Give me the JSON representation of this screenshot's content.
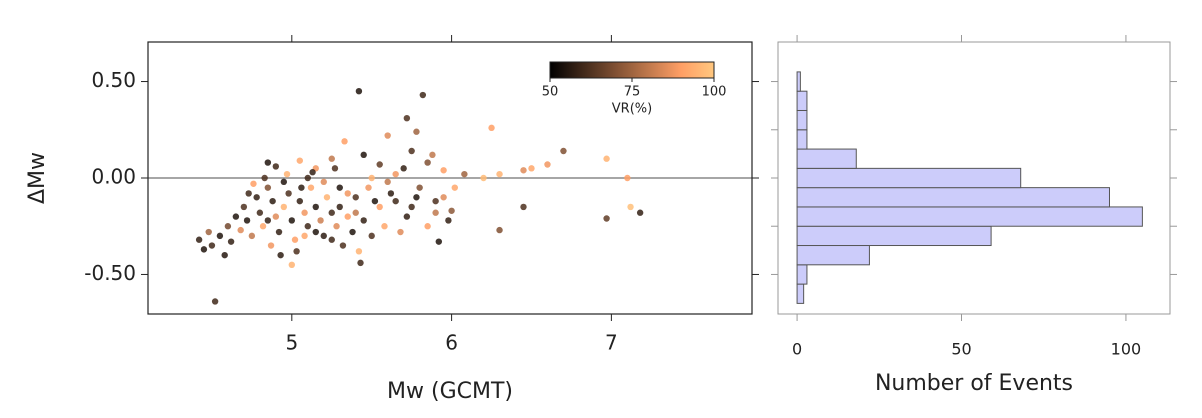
{
  "chart_data": [
    {
      "type": "scatter",
      "x_label": "Mw (GCMT)",
      "y_label": "ΔMw",
      "x": [
        5.42,
        5.82,
        5.72,
        4.52,
        6.25,
        6.7,
        6.97,
        7.18,
        6.97,
        7.12,
        7.1,
        6.6,
        6.5,
        6.45,
        6.3,
        6.2,
        6.45,
        6.3,
        6.0,
        5.92,
        5.43,
        5.0,
        4.42,
        4.45,
        5.33,
        5.6,
        5.78,
        5.45,
        5.25,
        5.05,
        4.85,
        4.9,
        5.15,
        5.55,
        5.7,
        5.85,
        5.95,
        5.75,
        5.88,
        6.08,
        5.5,
        5.6,
        5.8,
        5.95,
        6.02,
        5.65,
        5.9,
        5.72,
        5.55,
        5.4,
        5.3,
        5.2,
        5.1,
        4.95,
        4.85,
        4.78,
        4.7,
        4.65,
        4.6,
        4.55,
        4.5,
        4.58,
        4.48,
        4.62,
        4.68,
        4.72,
        4.75,
        4.8,
        4.82,
        4.88,
        4.9,
        4.92,
        4.95,
        4.98,
        5.0,
        5.02,
        5.05,
        5.08,
        5.1,
        5.12,
        5.15,
        5.18,
        5.2,
        5.22,
        5.25,
        5.28,
        5.3,
        5.32,
        5.35,
        5.38,
        5.4,
        5.45,
        5.48,
        5.5,
        5.52,
        5.58,
        5.62,
        5.68,
        5.75,
        5.85,
        5.98,
        4.87,
        4.93,
        5.03,
        4.97,
        5.06,
        4.83,
        4.76,
        5.13,
        5.27,
        5.35,
        5.15,
        4.85,
        4.73,
        5.08,
        5.25,
        5.42,
        5.9,
        5.65,
        5.78
      ],
      "values": [
        0.45,
        0.43,
        0.31,
        -0.64,
        0.26,
        0.14,
        0.1,
        -0.18,
        -0.21,
        -0.15,
        0.0,
        0.07,
        0.05,
        0.04,
        0.02,
        0.0,
        -0.15,
        -0.27,
        -0.17,
        -0.33,
        -0.44,
        -0.45,
        -0.32,
        -0.37,
        0.19,
        0.22,
        0.24,
        0.12,
        0.1,
        0.09,
        0.08,
        0.06,
        0.05,
        0.07,
        0.05,
        0.08,
        0.04,
        0.14,
        0.12,
        0.02,
        0.0,
        -0.02,
        -0.05,
        -0.1,
        -0.05,
        -0.12,
        -0.18,
        -0.2,
        -0.15,
        -0.1,
        -0.05,
        -0.02,
        0.0,
        -0.02,
        -0.05,
        -0.1,
        -0.15,
        -0.2,
        -0.25,
        -0.3,
        -0.35,
        -0.4,
        -0.28,
        -0.33,
        -0.27,
        -0.22,
        -0.3,
        -0.18,
        -0.25,
        -0.12,
        -0.2,
        -0.28,
        -0.15,
        -0.08,
        -0.22,
        -0.32,
        -0.12,
        -0.18,
        -0.25,
        -0.05,
        -0.15,
        -0.22,
        -0.3,
        -0.1,
        -0.18,
        -0.25,
        -0.15,
        -0.35,
        -0.2,
        -0.28,
        -0.18,
        -0.22,
        -0.05,
        -0.3,
        -0.12,
        -0.25,
        -0.08,
        -0.28,
        -0.15,
        -0.25,
        -0.22,
        -0.35,
        -0.4,
        -0.38,
        0.02,
        -0.05,
        0.0,
        -0.03,
        0.03,
        0.05,
        -0.08,
        -0.28,
        -0.22,
        -0.08,
        -0.3,
        -0.32,
        -0.38,
        -0.12,
        0.02,
        -0.1
      ],
      "color_values": [
        55,
        60,
        62,
        60,
        90,
        70,
        95,
        58,
        65,
        98,
        90,
        88,
        92,
        85,
        95,
        97,
        62,
        70,
        72,
        55,
        60,
        95,
        58,
        55,
        90,
        85,
        75,
        55,
        80,
        92,
        55,
        60,
        88,
        65,
        58,
        70,
        90,
        62,
        80,
        75,
        95,
        80,
        70,
        85,
        92,
        60,
        80,
        58,
        90,
        62,
        55,
        85,
        60,
        55,
        70,
        58,
        62,
        55,
        68,
        55,
        60,
        56,
        75,
        58,
        85,
        55,
        80,
        60,
        92,
        57,
        85,
        58,
        95,
        62,
        55,
        90,
        58,
        88,
        60,
        92,
        55,
        82,
        57,
        95,
        60,
        85,
        58,
        62,
        90,
        55,
        80,
        58,
        88,
        62,
        55,
        92,
        57,
        85,
        60,
        90,
        58,
        88,
        57,
        62,
        95,
        57,
        62,
        90,
        58,
        62,
        88,
        55,
        58,
        60,
        92,
        60,
        95,
        62,
        88,
        55
      ],
      "colorbar": {
        "label": "VR(%)",
        "lim": [
          50,
          100
        ],
        "ticks": [
          50,
          75,
          100
        ],
        "cmap": "copper"
      },
      "hline": 0,
      "xlim": [
        4.1,
        7.88
      ],
      "xticks": [
        5,
        6,
        7
      ],
      "ylim": [
        -0.705,
        0.705
      ],
      "yticks": [
        {
          "value": 0.5,
          "label": "0.50"
        },
        {
          "value": 0,
          "label": "0.00"
        },
        {
          "value": -0.5,
          "label": "-0.50"
        }
      ]
    },
    {
      "type": "histogram",
      "orientation": "horizontal",
      "x_label": "Number of Events",
      "bins": [
        -0.65,
        -0.55,
        -0.45,
        -0.35,
        -0.25,
        -0.15,
        -0.05,
        0.05,
        0.15,
        0.25,
        0.35,
        0.45,
        0.55
      ],
      "values": [
        2,
        3,
        22,
        59,
        105,
        95,
        68,
        18,
        3,
        3,
        3,
        1
      ],
      "color": "#ccccfa",
      "xlim": [
        -5.8,
        113.4
      ],
      "xticks": [
        0,
        50,
        100
      ],
      "ylim": [
        -0.705,
        0.705
      ],
      "yticks": [
        -0.5,
        -0.25,
        0,
        0.25,
        0.5
      ]
    }
  ]
}
